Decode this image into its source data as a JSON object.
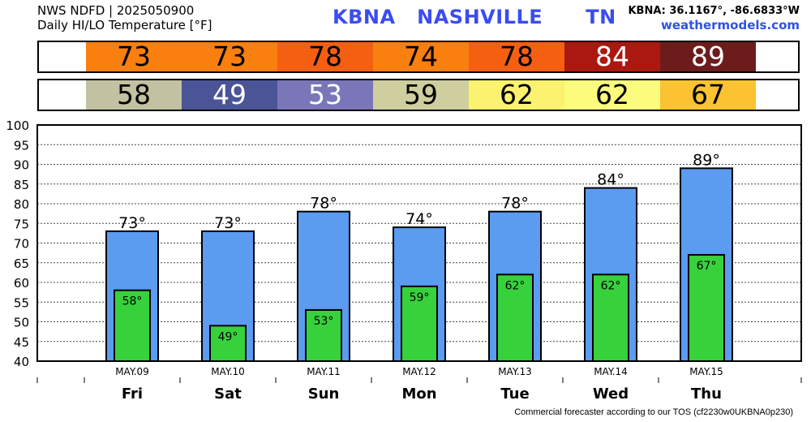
{
  "header": {
    "line1": "NWS NDFD | 2025050900",
    "line2": "Daily HI/LO Temperature [°F]",
    "title": "KBNA   NASHVILLE      TN",
    "coords": "KBNA: 36.1167°, -86.6833°W",
    "site": "weathermodels.com"
  },
  "footer": "Commercial forecaster according to our TOS (cf2230w0UKBNA0p230)",
  "strips": {
    "high": [
      {
        "value": "73",
        "bg": "#f97f0f",
        "fg": "#000000"
      },
      {
        "value": "73",
        "bg": "#f97f0f",
        "fg": "#000000"
      },
      {
        "value": "78",
        "bg": "#f55f12",
        "fg": "#000000"
      },
      {
        "value": "74",
        "bg": "#f97f0f",
        "fg": "#000000"
      },
      {
        "value": "78",
        "bg": "#f55f12",
        "fg": "#000000"
      },
      {
        "value": "84",
        "bg": "#ab180f",
        "fg": "#ffffff"
      },
      {
        "value": "89",
        "bg": "#6d1c1c",
        "fg": "#ffffff"
      }
    ],
    "low": [
      {
        "value": "58",
        "bg": "#c2c2a3",
        "fg": "#000000"
      },
      {
        "value": "49",
        "bg": "#4b5497",
        "fg": "#ffffff"
      },
      {
        "value": "53",
        "bg": "#7a76b9",
        "fg": "#ffffff"
      },
      {
        "value": "59",
        "bg": "#cece9e",
        "fg": "#000000"
      },
      {
        "value": "62",
        "bg": "#fbf370",
        "fg": "#000000"
      },
      {
        "value": "62",
        "bg": "#fbfb7e",
        "fg": "#000000"
      },
      {
        "value": "67",
        "bg": "#fbc232",
        "fg": "#000000"
      }
    ]
  },
  "chart_data": {
    "type": "bar",
    "categories": [
      "Fri",
      "Sat",
      "Sun",
      "Mon",
      "Tue",
      "Wed",
      "Thu"
    ],
    "dates": [
      "MAY.09",
      "MAY.10",
      "MAY.11",
      "MAY.12",
      "MAY.13",
      "MAY.14",
      "MAY.15"
    ],
    "series": [
      {
        "values": [
          73,
          73,
          78,
          74,
          78,
          84,
          89
        ],
        "labels": [
          "73°",
          "73°",
          "78°",
          "74°",
          "78°",
          "84°",
          "89°"
        ],
        "color": "#5b9bf0"
      },
      {
        "values": [
          58,
          49,
          53,
          59,
          62,
          62,
          67
        ],
        "labels": [
          "58°",
          "49°",
          "53°",
          "59°",
          "62°",
          "62°",
          "67°"
        ],
        "color": "#37d13c"
      }
    ],
    "yticks": [
      "40",
      "45",
      "50",
      "55",
      "60",
      "65",
      "70",
      "75",
      "80",
      "85",
      "90",
      "95",
      "100"
    ],
    "ylim": [
      40,
      100
    ],
    "grid": true
  }
}
